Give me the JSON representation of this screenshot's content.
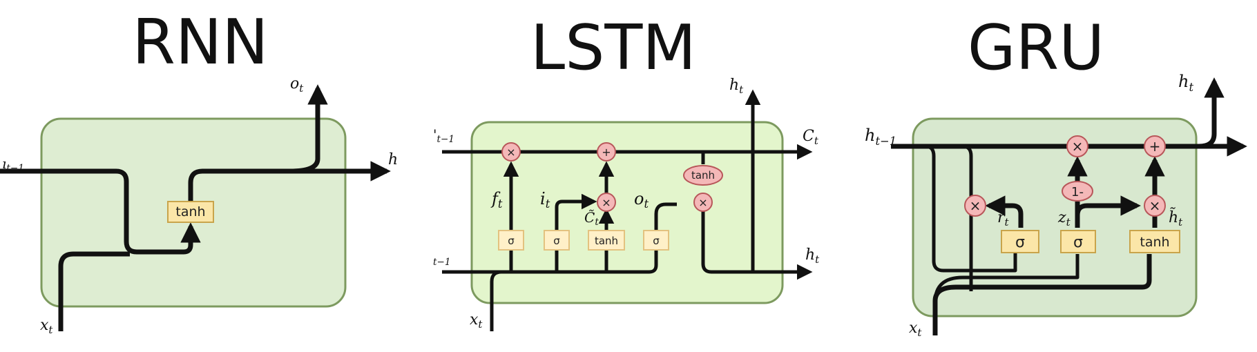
{
  "colors": {
    "panel_fill_rnn": "#deedd2",
    "panel_fill_lstm": "#e3f5cc",
    "panel_fill_gru": "#d8e8cf",
    "panel_stroke": "#7d9a5f",
    "op_fill": "#f4b8b8",
    "gate_fill": "#fbe6a8",
    "line": "#111111"
  },
  "rnn": {
    "title": "RNN",
    "labels": {
      "h_in": "t−1",
      "h_in_partial": "ı",
      "h_out": "h",
      "o": "o",
      "o_sub": "t",
      "x": "x",
      "x_sub": "t"
    },
    "tanh": "tanh"
  },
  "lstm": {
    "title": "LSTM",
    "labels": {
      "c_in": "t−1",
      "c_in_partial": "'",
      "h_in": "t−1",
      "c_out": "C",
      "c_out_sub": "t",
      "h_top": "h",
      "h_top_sub": "t",
      "h_right": "h",
      "h_right_sub": "t",
      "x": "x",
      "x_sub": "t",
      "f": "f",
      "f_sub": "t",
      "i": "i",
      "i_sub": "t",
      "c_tilde": "C̃",
      "c_tilde_sub": "t",
      "o": "o",
      "o_sub": "t"
    },
    "gates": [
      "σ",
      "σ",
      "tanh",
      "σ"
    ],
    "ops": {
      "forget": "×",
      "add": "+",
      "input": "×",
      "output": "×",
      "tanh_op": "tanh"
    }
  },
  "gru": {
    "title": "GRU",
    "labels": {
      "h_in": "h",
      "h_in_sub": "t−1",
      "h_out": "h",
      "h_out_sub": "t",
      "x": "x",
      "x_sub": "t",
      "r": "r",
      "r_sub": "t",
      "z": "z",
      "z_sub": "t",
      "h_tilde": "h̃",
      "h_tilde_sub": "t"
    },
    "gates": [
      "σ",
      "σ",
      "tanh"
    ],
    "ops": {
      "reset": "×",
      "update_mult": "×",
      "add": "+",
      "one_minus": "1-",
      "cand_mult": "×"
    }
  }
}
